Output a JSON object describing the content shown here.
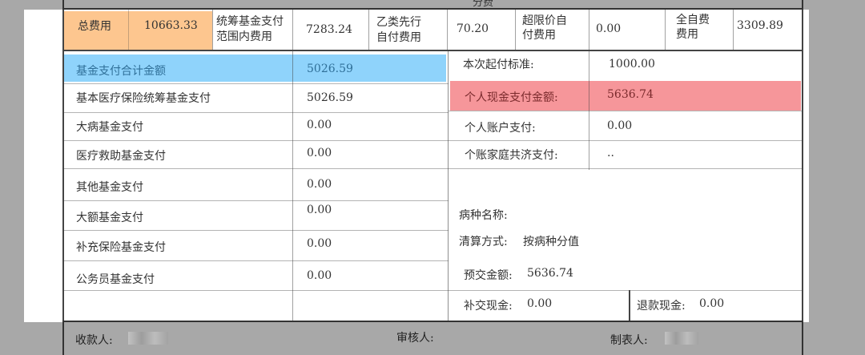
{
  "header_partial": "分费",
  "fees": {
    "total_label": "总费用",
    "total_value": "10663.33",
    "pooled_label_1": "统筹基金支付",
    "pooled_label_2": "范围内费用",
    "pooled_value": "7283.24",
    "classb_label_1": "乙类先行",
    "classb_label_2": "自付费用",
    "classb_value": "70.20",
    "overlimit_label_1": "超限价自",
    "overlimit_label_2": "付费用",
    "overlimit_value": "0.00",
    "selfpay_label_1": "全自费",
    "selfpay_label_2": "费用",
    "selfpay_value": "3309.89"
  },
  "left_rows": [
    {
      "label": "基金支付合计金额",
      "value": "5026.59"
    },
    {
      "label": "基本医疗保险统筹基金支付",
      "value": "5026.59"
    },
    {
      "label": "大病基金支付",
      "value": "0.00"
    },
    {
      "label": "医疗救助基金支付",
      "value": "0.00"
    },
    {
      "label": "其他基金支付",
      "value": "0.00"
    },
    {
      "label": "大额基金支付",
      "value": "0.00"
    },
    {
      "label": "补充保险基金支付",
      "value": "0.00"
    },
    {
      "label": "公务员基金支付",
      "value": "0.00"
    }
  ],
  "right_rows": [
    {
      "label": "本次起付标准:",
      "value": "1000.00"
    },
    {
      "label": "个人现金支付金额:",
      "value": "5636.74"
    },
    {
      "label": "个人账户支付:",
      "value": "0.00"
    },
    {
      "label": "个账家庭共济支付:",
      "value": ".."
    }
  ],
  "disease_label": "病种名称:",
  "settlement": {
    "label": "清算方式:",
    "value": "按病种分值"
  },
  "prepaid": {
    "label": "预交金额:",
    "value": "5636.74"
  },
  "supplement": {
    "label": "补交现金:",
    "value": "0.00"
  },
  "refund": {
    "label": "退款现金:",
    "value": "0.00"
  },
  "footer": {
    "cashier": "收款人:",
    "reviewer": "审核人:",
    "preparer": "制表人:"
  },
  "colors": {
    "total_highlight": "#fdc68f",
    "fund_highlight": "#8fd3fb",
    "cash_highlight": "#f6969a"
  }
}
